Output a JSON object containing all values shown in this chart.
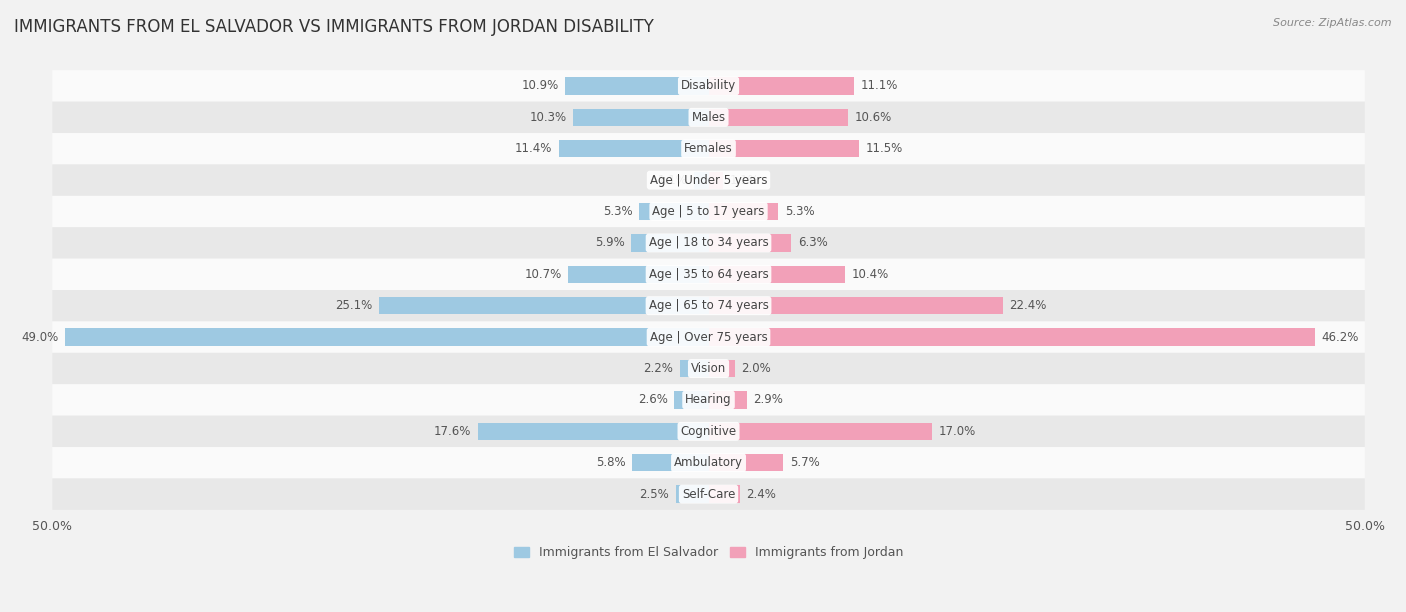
{
  "title": "IMMIGRANTS FROM EL SALVADOR VS IMMIGRANTS FROM JORDAN DISABILITY",
  "source": "Source: ZipAtlas.com",
  "categories": [
    "Disability",
    "Males",
    "Females",
    "Age | Under 5 years",
    "Age | 5 to 17 years",
    "Age | 18 to 34 years",
    "Age | 35 to 64 years",
    "Age | 65 to 74 years",
    "Age | Over 75 years",
    "Vision",
    "Hearing",
    "Cognitive",
    "Ambulatory",
    "Self-Care"
  ],
  "left_values": [
    10.9,
    10.3,
    11.4,
    1.1,
    5.3,
    5.9,
    10.7,
    25.1,
    49.0,
    2.2,
    2.6,
    17.6,
    5.8,
    2.5
  ],
  "right_values": [
    11.1,
    10.6,
    11.5,
    1.1,
    5.3,
    6.3,
    10.4,
    22.4,
    46.2,
    2.0,
    2.9,
    17.0,
    5.7,
    2.4
  ],
  "left_color": "#9ec9e2",
  "right_color": "#f2a0b8",
  "left_label": "Immigrants from El Salvador",
  "right_label": "Immigrants from Jordan",
  "max_value": 50.0,
  "background_color": "#f2f2f2",
  "row_color_light": "#fafafa",
  "row_color_dark": "#e8e8e8",
  "title_fontsize": 12,
  "label_fontsize": 8.5,
  "value_fontsize": 8.5
}
